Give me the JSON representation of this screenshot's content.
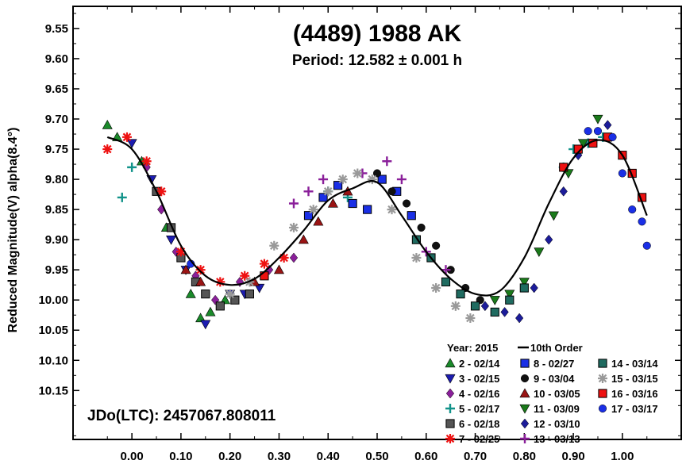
{
  "chart_data": {
    "type": "scatter",
    "title": "(4489) 1988 AK",
    "subtitle": "Period: 12.582 ± 0.001 h",
    "xlabel": "",
    "ylabel": "Reduced Magnitude(V) alpha(8.4°)",
    "xlim": [
      -0.12,
      1.12
    ],
    "ylim": [
      10.2311,
      9.5133
    ],
    "y_inverted": true,
    "grid": false,
    "x_ticks": [
      "0.00",
      "0.10",
      "0.20",
      "0.30",
      "0.40",
      "0.50",
      "0.60",
      "0.70",
      "0.80",
      "0.90",
      "1.00"
    ],
    "x_tick_values": [
      0,
      0.1,
      0.2,
      0.3,
      0.4,
      0.5,
      0.6,
      0.7,
      0.8,
      0.9,
      1.0
    ],
    "y_ticks": [
      "9.55",
      "9.60",
      "9.65",
      "9.70",
      "9.75",
      "9.80",
      "9.85",
      "9.90",
      "9.95",
      "10.00",
      "10.05",
      "10.10",
      "10.15"
    ],
    "y_tick_values": [
      9.55,
      9.6,
      9.65,
      9.7,
      9.75,
      9.8,
      9.85,
      9.9,
      9.95,
      10.0,
      10.05,
      10.1,
      10.15
    ],
    "annotation": "JDo(LTC): 2457067.808011",
    "legend_placement": "bottom-right",
    "legend_header": "Year: 2015",
    "fit_label": "10th Order",
    "fit_curve": {
      "x": [
        -0.05,
        0.0,
        0.05,
        0.1,
        0.15,
        0.2,
        0.25,
        0.3,
        0.35,
        0.4,
        0.45,
        0.5,
        0.55,
        0.6,
        0.65,
        0.7,
        0.75,
        0.8,
        0.85,
        0.9,
        0.95,
        1.0,
        1.05
      ],
      "y": [
        9.73,
        9.75,
        9.82,
        9.91,
        9.96,
        9.975,
        9.965,
        9.93,
        9.885,
        9.835,
        9.815,
        9.805,
        9.86,
        9.92,
        9.965,
        9.99,
        9.985,
        9.93,
        9.84,
        9.765,
        9.735,
        9.76,
        9.86
      ]
    },
    "series": [
      {
        "name": "2 - 02/14",
        "color": "#1a8a2a",
        "marker": "triangle-up",
        "points": [
          [
            -0.05,
            9.71
          ],
          [
            -0.03,
            9.73
          ],
          [
            0.02,
            9.77
          ],
          [
            0.07,
            9.88
          ],
          [
            0.12,
            9.99
          ],
          [
            0.14,
            10.03
          ],
          [
            0.16,
            10.02
          ],
          [
            0.19,
            10.0
          ]
        ]
      },
      {
        "name": "3 - 02/15",
        "color": "#1c1cb0",
        "marker": "triangle-down",
        "points": [
          [
            0.0,
            9.74
          ],
          [
            0.04,
            9.8
          ],
          [
            0.08,
            9.9
          ],
          [
            0.11,
            9.95
          ],
          [
            0.15,
            10.04
          ],
          [
            0.2,
            9.99
          ],
          [
            0.23,
            9.99
          ],
          [
            0.26,
            9.98
          ]
        ]
      },
      {
        "name": "4 - 02/16",
        "color": "#8a1f9a",
        "marker": "diamond",
        "points": [
          [
            0.03,
            9.78
          ],
          [
            0.06,
            9.85
          ],
          [
            0.09,
            9.92
          ],
          [
            0.13,
            9.96
          ],
          [
            0.17,
            10.0
          ],
          [
            0.22,
            9.97
          ],
          [
            0.28,
            9.95
          ],
          [
            0.33,
            9.93
          ]
        ]
      },
      {
        "name": "5 - 02/17",
        "color": "#12938a",
        "marker": "plus",
        "points": [
          [
            -0.02,
            9.83
          ],
          [
            0.0,
            9.78
          ],
          [
            0.4,
            9.82
          ],
          [
            0.44,
            9.83
          ],
          [
            0.88,
            9.78
          ],
          [
            0.9,
            9.75
          ],
          [
            0.93,
            9.74
          ],
          [
            0.96,
            9.73
          ]
        ]
      },
      {
        "name": "6 - 02/18",
        "color": "#555555",
        "marker": "square",
        "points": [
          [
            0.05,
            9.82
          ],
          [
            0.08,
            9.88
          ],
          [
            0.1,
            9.93
          ],
          [
            0.13,
            9.97
          ],
          [
            0.15,
            9.99
          ],
          [
            0.18,
            10.01
          ],
          [
            0.21,
            10.0
          ],
          [
            0.24,
            9.99
          ]
        ]
      },
      {
        "name": "7 - 02/25",
        "color": "#ee1111",
        "marker": "asterisk",
        "points": [
          [
            -0.05,
            9.75
          ],
          [
            -0.01,
            9.73
          ],
          [
            0.03,
            9.77
          ],
          [
            0.06,
            9.82
          ],
          [
            0.1,
            9.92
          ],
          [
            0.14,
            9.95
          ],
          [
            0.18,
            9.97
          ],
          [
            0.23,
            9.96
          ],
          [
            0.27,
            9.94
          ],
          [
            0.31,
            9.93
          ]
        ]
      },
      {
        "name": "8 - 02/27",
        "color": "#1a2fe6",
        "marker": "square",
        "points": [
          [
            0.36,
            9.86
          ],
          [
            0.39,
            9.83
          ],
          [
            0.42,
            9.81
          ],
          [
            0.45,
            9.84
          ],
          [
            0.48,
            9.85
          ],
          [
            0.51,
            9.8
          ],
          [
            0.54,
            9.82
          ],
          [
            0.57,
            9.86
          ]
        ]
      },
      {
        "name": "9 - 03/04",
        "color": "#111111",
        "marker": "circle",
        "points": [
          [
            0.5,
            9.79
          ],
          [
            0.53,
            9.82
          ],
          [
            0.56,
            9.84
          ],
          [
            0.59,
            9.88
          ],
          [
            0.62,
            9.91
          ],
          [
            0.65,
            9.95
          ],
          [
            0.68,
            9.98
          ],
          [
            0.71,
            10.0
          ]
        ]
      },
      {
        "name": "10 - 03/05",
        "color": "#9a1414",
        "marker": "triangle-up",
        "points": [
          [
            0.11,
            9.95
          ],
          [
            0.14,
            9.97
          ],
          [
            0.25,
            9.97
          ],
          [
            0.3,
            9.95
          ],
          [
            0.35,
            9.9
          ],
          [
            0.38,
            9.87
          ],
          [
            0.41,
            9.84
          ],
          [
            0.44,
            9.82
          ]
        ]
      },
      {
        "name": "11 - 03/09",
        "color": "#1a7a1a",
        "marker": "triangle-down",
        "points": [
          [
            0.74,
            10.0
          ],
          [
            0.77,
            9.99
          ],
          [
            0.8,
            9.97
          ],
          [
            0.83,
            9.92
          ],
          [
            0.86,
            9.86
          ],
          [
            0.89,
            9.79
          ],
          [
            0.92,
            9.74
          ],
          [
            0.95,
            9.7
          ]
        ]
      },
      {
        "name": "12 - 03/10",
        "color": "#1c1c9a",
        "marker": "diamond",
        "points": [
          [
            0.72,
            10.01
          ],
          [
            0.76,
            10.02
          ],
          [
            0.79,
            10.03
          ],
          [
            0.82,
            9.98
          ],
          [
            0.85,
            9.9
          ],
          [
            0.88,
            9.82
          ],
          [
            0.91,
            9.76
          ],
          [
            0.97,
            9.71
          ]
        ]
      },
      {
        "name": "13 - 03/13",
        "color": "#8a1f9a",
        "marker": "plus",
        "points": [
          [
            0.33,
            9.84
          ],
          [
            0.36,
            9.82
          ],
          [
            0.39,
            9.8
          ],
          [
            0.47,
            9.79
          ],
          [
            0.52,
            9.77
          ],
          [
            0.55,
            9.8
          ],
          [
            0.6,
            9.92
          ],
          [
            0.64,
            9.95
          ]
        ]
      },
      {
        "name": "14 - 03/14",
        "color": "#1f6b60",
        "marker": "square",
        "points": [
          [
            0.58,
            9.9
          ],
          [
            0.61,
            9.93
          ],
          [
            0.64,
            9.97
          ],
          [
            0.67,
            9.99
          ],
          [
            0.7,
            10.01
          ],
          [
            0.74,
            10.02
          ],
          [
            0.77,
            10.0
          ],
          [
            0.8,
            9.98
          ]
        ]
      },
      {
        "name": "15 - 03/15",
        "color": "#999999",
        "marker": "asterisk",
        "points": [
          [
            0.2,
            9.99
          ],
          [
            0.24,
            9.97
          ],
          [
            0.29,
            9.91
          ],
          [
            0.33,
            9.88
          ],
          [
            0.37,
            9.85
          ],
          [
            0.4,
            9.82
          ],
          [
            0.43,
            9.8
          ],
          [
            0.46,
            9.79
          ],
          [
            0.49,
            9.8
          ],
          [
            0.53,
            9.85
          ],
          [
            0.58,
            9.93
          ],
          [
            0.62,
            9.98
          ],
          [
            0.66,
            10.01
          ],
          [
            0.69,
            10.03
          ]
        ]
      },
      {
        "name": "16 - 03/16",
        "color": "#ee1111",
        "marker": "square",
        "points": [
          [
            0.88,
            9.78
          ],
          [
            0.91,
            9.75
          ],
          [
            0.94,
            9.74
          ],
          [
            0.97,
            9.73
          ],
          [
            1.0,
            9.76
          ],
          [
            1.02,
            9.79
          ],
          [
            1.04,
            9.83
          ],
          [
            0.27,
            9.96
          ]
        ]
      },
      {
        "name": "17 - 03/17",
        "color": "#1a2fe6",
        "marker": "circle",
        "points": [
          [
            0.93,
            9.72
          ],
          [
            0.95,
            9.72
          ],
          [
            0.98,
            9.73
          ],
          [
            1.0,
            9.79
          ],
          [
            1.02,
            9.85
          ],
          [
            1.04,
            9.87
          ],
          [
            1.05,
            9.91
          ],
          [
            0.12,
            9.94
          ]
        ]
      }
    ]
  }
}
